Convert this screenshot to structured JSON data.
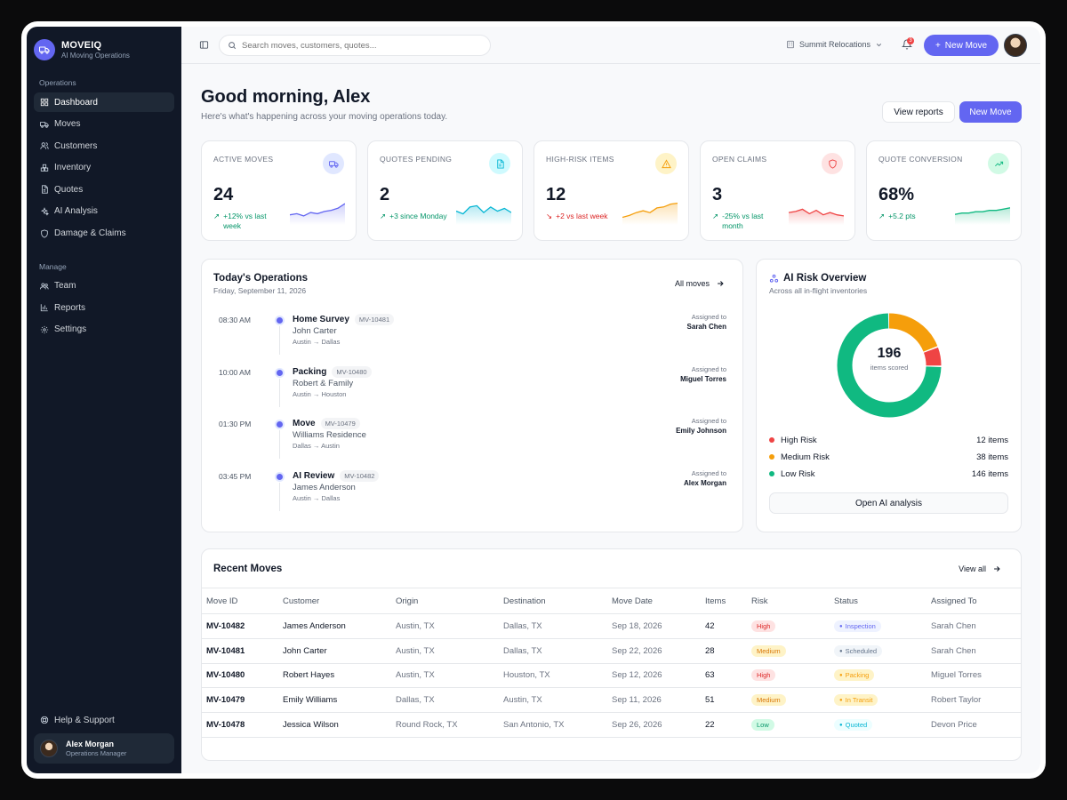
{
  "brand": {
    "name": "MOVEIQ",
    "tagline": "AI Moving Operations"
  },
  "sidebar": {
    "section_ops": "Operations",
    "ops_items": [
      {
        "label": "Dashboard",
        "icon": "grid-icon",
        "active": true
      },
      {
        "label": "Moves",
        "icon": "truck-icon"
      },
      {
        "label": "Customers",
        "icon": "users-icon"
      },
      {
        "label": "Inventory",
        "icon": "boxes-icon"
      },
      {
        "label": "Quotes",
        "icon": "document-icon"
      },
      {
        "label": "AI Analysis",
        "icon": "sparkles-icon"
      },
      {
        "label": "Damage & Claims",
        "icon": "shield-icon"
      }
    ],
    "section_manage": "Manage",
    "manage_items": [
      {
        "label": "Team",
        "icon": "team-icon"
      },
      {
        "label": "Reports",
        "icon": "bar-chart-icon"
      },
      {
        "label": "Settings",
        "icon": "gear-icon"
      }
    ],
    "help": "Help & Support",
    "user": {
      "name": "Alex Morgan",
      "role": "Operations Manager"
    }
  },
  "topbar": {
    "search_placeholder": "Search moves, customers, quotes...",
    "org": "Summit Relocations",
    "notifications": "3",
    "new_move": "New Move"
  },
  "header": {
    "greeting": "Good morning, Alex",
    "subtitle": "Here's what's happening across your moving operations today.",
    "view_reports": "View reports",
    "new_move": "New Move"
  },
  "stats": [
    {
      "label": "ACTIVE MOVES",
      "value": "24",
      "delta": "+12% vs last week",
      "trend": "up",
      "color": "#6366f1",
      "icon": "truck-icon",
      "spark": [
        18,
        17,
        19,
        16,
        17,
        15,
        14,
        12,
        8
      ]
    },
    {
      "label": "QUOTES PENDING",
      "value": "2",
      "delta": "+3 since Monday",
      "trend": "up",
      "color": "#06b6d4",
      "icon": "document-icon",
      "spark": [
        12,
        14,
        9,
        8,
        13,
        9,
        12,
        10,
        13
      ]
    },
    {
      "label": "HIGH-RISK ITEMS",
      "value": "12",
      "delta": "+2 vs last week",
      "trend": "down",
      "color": "#f59e0b",
      "icon": "warning-icon",
      "spark": [
        24,
        22,
        19,
        17,
        19,
        14,
        13,
        10,
        9
      ]
    },
    {
      "label": "OPEN CLAIMS",
      "value": "3",
      "delta": "-25% vs last month",
      "trend": "up",
      "color": "#ef4444",
      "icon": "shield-icon",
      "spark": [
        16,
        15,
        13,
        17,
        14,
        18,
        16,
        18,
        19
      ]
    },
    {
      "label": "QUOTE CONVERSION",
      "value": "68%",
      "delta": "+5.2 pts",
      "trend": "up",
      "color": "#10b981",
      "icon": "trend-up-icon",
      "spark": [
        15,
        14,
        14,
        13,
        13,
        12,
        12,
        11,
        10
      ]
    }
  ],
  "ops": {
    "title": "Today's Operations",
    "date": "Friday, September 11, 2026",
    "all_moves": "All moves",
    "items": [
      {
        "time": "08:30 AM",
        "title": "Home Survey",
        "id": "MV-10481",
        "customer": "John Carter",
        "route": "Austin → Dallas",
        "assigned_label": "Assigned to",
        "assignee": "Sarah Chen"
      },
      {
        "time": "10:00 AM",
        "title": "Packing",
        "id": "MV-10480",
        "customer": "Robert & Family",
        "route": "Austin → Houston",
        "assigned_label": "Assigned to",
        "assignee": "Miguel Torres"
      },
      {
        "time": "01:30 PM",
        "title": "Move",
        "id": "MV-10479",
        "customer": "Williams Residence",
        "route": "Dallas → Austin",
        "assigned_label": "Assigned to",
        "assignee": "Emily Johnson"
      },
      {
        "time": "03:45 PM",
        "title": "AI Review",
        "id": "MV-10482",
        "customer": "James Anderson",
        "route": "Austin → Dallas",
        "assigned_label": "Assigned to",
        "assignee": "Alex Morgan"
      }
    ]
  },
  "risk": {
    "title": "AI Risk Overview",
    "subtitle": "Across all in-flight inventories",
    "total": "196",
    "total_label": "items scored",
    "button": "Open AI analysis",
    "segments": [
      {
        "label": "High Risk",
        "count": "12 items",
        "value": 12,
        "color": "#ef4444"
      },
      {
        "label": "Medium Risk",
        "count": "38 items",
        "value": 38,
        "color": "#f59e0b"
      },
      {
        "label": "Low Risk",
        "count": "146 items",
        "value": 146,
        "color": "#10b981"
      }
    ]
  },
  "recent": {
    "title": "Recent Moves",
    "view_all": "View all",
    "columns": [
      "Move ID",
      "Customer",
      "Origin",
      "Destination",
      "Move Date",
      "Items",
      "Risk",
      "Status",
      "Assigned To"
    ],
    "rows": [
      {
        "id": "MV-10482",
        "customer": "James Anderson",
        "origin": "Austin, TX",
        "destination": "Dallas, TX",
        "date": "Sep 18, 2026",
        "items": "42",
        "risk": "High",
        "status": "Inspection",
        "assigned": "Sarah Chen"
      },
      {
        "id": "MV-10481",
        "customer": "John Carter",
        "origin": "Austin, TX",
        "destination": "Dallas, TX",
        "date": "Sep 22, 2026",
        "items": "28",
        "risk": "Medium",
        "status": "Scheduled",
        "assigned": "Sarah Chen"
      },
      {
        "id": "MV-10480",
        "customer": "Robert Hayes",
        "origin": "Austin, TX",
        "destination": "Houston, TX",
        "date": "Sep 12, 2026",
        "items": "63",
        "risk": "High",
        "status": "Packing",
        "assigned": "Miguel Torres"
      },
      {
        "id": "MV-10479",
        "customer": "Emily Williams",
        "origin": "Dallas, TX",
        "destination": "Austin, TX",
        "date": "Sep 11, 2026",
        "items": "51",
        "risk": "Medium",
        "status": "In Transit",
        "assigned": "Robert Taylor"
      },
      {
        "id": "MV-10478",
        "customer": "Jessica Wilson",
        "origin": "Round Rock, TX",
        "destination": "San Antonio, TX",
        "date": "Sep 26, 2026",
        "items": "22",
        "risk": "Low",
        "status": "Quoted",
        "assigned": "Devon Price"
      }
    ]
  },
  "colors": {
    "accent": "#6366f1",
    "sidebar_bg": "#111827",
    "risk_high_bg": "#fee2e2",
    "risk_high_fg": "#dc2626",
    "risk_medium_bg": "#fef3c7",
    "risk_medium_fg": "#d97706",
    "risk_low_bg": "#d1fae5",
    "risk_low_fg": "#059669",
    "status_inspection": "#6366f1",
    "status_scheduled": "#64748b",
    "status_packing": "#f59e0b",
    "status_transit": "#f59e0b",
    "status_quoted": "#06b6d4"
  }
}
